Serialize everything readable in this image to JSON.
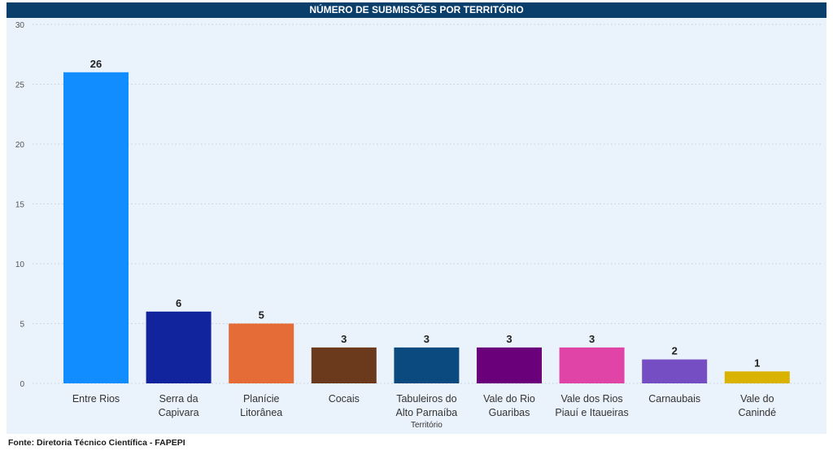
{
  "source_note": "Fonte: Diretoria Técnico Científica - FAPEPI",
  "chart_data": {
    "type": "bar",
    "title": "NÚMERO DE SUBMISSÕES POR TERRITÓRIO",
    "xlabel": "Território",
    "ylabel": "",
    "ylim": [
      0,
      30
    ],
    "yticks": [
      0,
      5,
      10,
      15,
      20,
      25,
      30
    ],
    "grid": true,
    "categories": [
      [
        "Entre Rios"
      ],
      [
        "Serra da",
        "Capivara"
      ],
      [
        "Planície",
        "Litorânea"
      ],
      [
        "Cocais"
      ],
      [
        "Tabuleiros do",
        "Alto Parnaíba"
      ],
      [
        "Vale do Rio",
        "Guaribas"
      ],
      [
        "Vale dos Rios",
        "Piauí e Itaueiras"
      ],
      [
        "Carnaubais"
      ],
      [
        "Vale do",
        "Canindé"
      ]
    ],
    "values": [
      26,
      6,
      5,
      3,
      3,
      3,
      3,
      2,
      1
    ],
    "colors": [
      "#118dff",
      "#12239e",
      "#e66c37",
      "#6b3a1c",
      "#0b4a7e",
      "#6b007b",
      "#e044a7",
      "#744ec2",
      "#d9b300"
    ]
  }
}
